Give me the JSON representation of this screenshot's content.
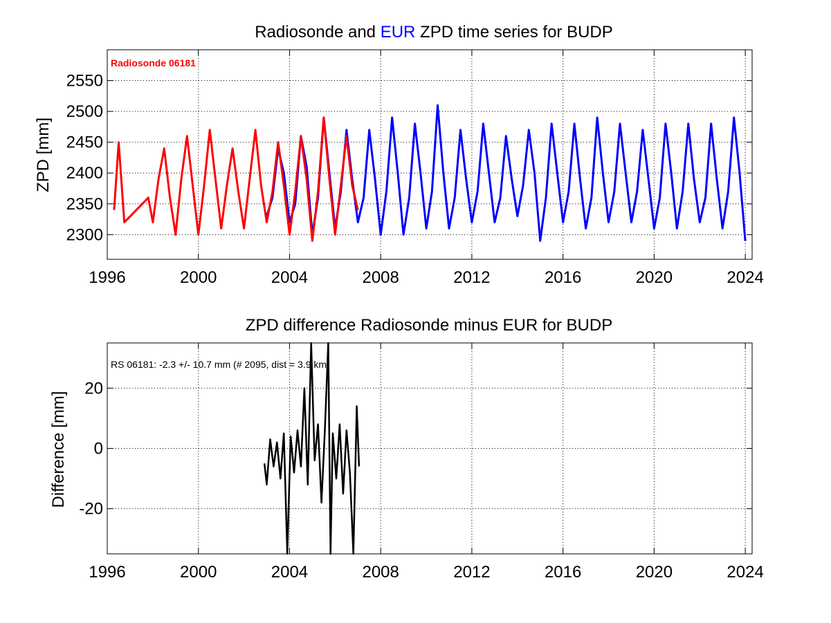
{
  "chart_data": [
    {
      "type": "line",
      "title_parts": [
        "Radiosonde and ",
        "EUR",
        " ZPD time series for BUDP"
      ],
      "title_colors": [
        "#000000",
        "#0000ff",
        "#000000"
      ],
      "xlabel": "",
      "ylabel": "ZPD [mm]",
      "xlim": [
        1996,
        2024.3
      ],
      "ylim": [
        2260,
        2600
      ],
      "xticks": [
        1996,
        2000,
        2004,
        2008,
        2012,
        2016,
        2020,
        2024
      ],
      "yticks": [
        2300,
        2350,
        2400,
        2450,
        2500,
        2550
      ],
      "grid": true,
      "annotation": "Radiosonde 06181",
      "annotation_color": "#ff0000",
      "series": [
        {
          "name": "EUR",
          "color": "#0000ff",
          "x": [
            2003.0,
            2003.25,
            2003.5,
            2003.75,
            2004.0,
            2004.25,
            2004.5,
            2004.75,
            2005.0,
            2005.25,
            2005.5,
            2005.75,
            2006.0,
            2006.25,
            2006.5,
            2006.75,
            2007.0,
            2007.25,
            2007.5,
            2007.75,
            2008.0,
            2008.25,
            2008.5,
            2008.75,
            2009.0,
            2009.25,
            2009.5,
            2009.75,
            2010.0,
            2010.25,
            2010.5,
            2010.75,
            2011.0,
            2011.25,
            2011.5,
            2011.75,
            2012.0,
            2012.25,
            2012.5,
            2012.75,
            2013.0,
            2013.25,
            2013.5,
            2013.75,
            2014.0,
            2014.25,
            2014.5,
            2014.75,
            2015.0,
            2015.25,
            2015.5,
            2015.75,
            2016.0,
            2016.25,
            2016.5,
            2016.75,
            2017.0,
            2017.25,
            2017.5,
            2017.75,
            2018.0,
            2018.25,
            2018.5,
            2018.75,
            2019.0,
            2019.25,
            2019.5,
            2019.75,
            2020.0,
            2020.25,
            2020.5,
            2020.75,
            2021.0,
            2021.25,
            2021.5,
            2021.75,
            2022.0,
            2022.25,
            2022.5,
            2022.75,
            2023.0,
            2023.25,
            2023.5,
            2023.75,
            2024.0
          ],
          "y": [
            2330,
            2360,
            2440,
            2400,
            2320,
            2350,
            2460,
            2410,
            2300,
            2360,
            2490,
            2400,
            2310,
            2370,
            2470,
            2390,
            2320,
            2360,
            2470,
            2390,
            2300,
            2370,
            2490,
            2400,
            2300,
            2360,
            2480,
            2400,
            2310,
            2370,
            2510,
            2400,
            2310,
            2360,
            2470,
            2390,
            2320,
            2370,
            2480,
            2400,
            2320,
            2360,
            2460,
            2390,
            2330,
            2380,
            2470,
            2400,
            2290,
            2360,
            2480,
            2400,
            2320,
            2370,
            2480,
            2390,
            2310,
            2360,
            2490,
            2400,
            2320,
            2370,
            2480,
            2400,
            2320,
            2370,
            2470,
            2390,
            2310,
            2360,
            2480,
            2400,
            2310,
            2370,
            2480,
            2390,
            2320,
            2360,
            2480,
            2390,
            2310,
            2370,
            2490,
            2400,
            2290
          ]
        },
        {
          "name": "Radiosonde 06181",
          "color": "#ff0000",
          "x": [
            1996.3,
            1996.5,
            1996.75,
            1997.8,
            1998.0,
            1998.25,
            1998.5,
            1998.75,
            1999.0,
            1999.25,
            1999.5,
            1999.75,
            2000.0,
            2000.25,
            2000.5,
            2000.75,
            2001.0,
            2001.25,
            2001.5,
            2001.75,
            2002.0,
            2002.25,
            2002.5,
            2002.75,
            2003.0,
            2003.25,
            2003.5,
            2003.75,
            2004.0,
            2004.25,
            2004.5,
            2004.75,
            2005.0,
            2005.25,
            2005.5,
            2005.75,
            2006.0,
            2006.25,
            2006.5,
            2006.75,
            2007.0
          ],
          "y": [
            2340,
            2450,
            2320,
            2360,
            2320,
            2390,
            2440,
            2360,
            2300,
            2390,
            2460,
            2380,
            2300,
            2380,
            2470,
            2390,
            2310,
            2380,
            2440,
            2370,
            2310,
            2390,
            2470,
            2380,
            2320,
            2370,
            2450,
            2380,
            2300,
            2370,
            2460,
            2390,
            2290,
            2370,
            2490,
            2390,
            2300,
            2380,
            2460,
            2380,
            2340
          ]
        }
      ]
    },
    {
      "type": "line",
      "title": "ZPD difference Radiosonde minus EUR for BUDP",
      "xlabel": "",
      "ylabel": "Difference [mm]",
      "xlim": [
        1996,
        2024.3
      ],
      "ylim": [
        -35,
        35
      ],
      "xticks": [
        1996,
        2000,
        2004,
        2008,
        2012,
        2016,
        2020,
        2024
      ],
      "yticks": [
        -20,
        0,
        20
      ],
      "grid": true,
      "annotation": "RS 06181: -2.3 +/- 10.7 mm (# 2095, dist =   3.9 km)",
      "series": [
        {
          "name": "",
          "color": "#000000",
          "x": [
            2002.9,
            2003.0,
            2003.15,
            2003.3,
            2003.45,
            2003.6,
            2003.75,
            2003.9,
            2004.05,
            2004.2,
            2004.35,
            2004.5,
            2004.65,
            2004.8,
            2004.95,
            2005.1,
            2005.25,
            2005.4,
            2005.55,
            2005.7,
            2005.8,
            2005.9,
            2006.05,
            2006.2,
            2006.35,
            2006.5,
            2006.65,
            2006.8,
            2006.95,
            2007.05
          ],
          "y": [
            -5,
            -12,
            3,
            -6,
            2,
            -10,
            5,
            -35,
            4,
            -8,
            6,
            -6,
            20,
            -12,
            35,
            -4,
            8,
            -18,
            6,
            35,
            -35,
            5,
            -10,
            8,
            -15,
            6,
            -8,
            -35,
            14,
            -6
          ]
        }
      ]
    }
  ]
}
